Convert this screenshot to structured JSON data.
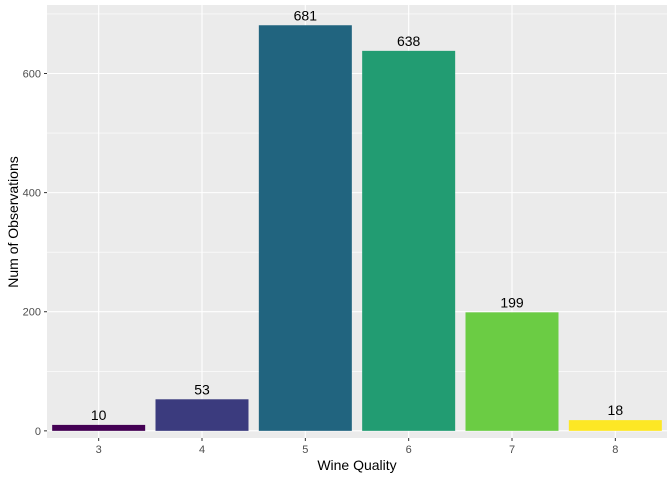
{
  "chart_data": {
    "type": "bar",
    "title": "",
    "xlabel": "Wine Quality",
    "ylabel": "Num of Observations",
    "categories": [
      "3",
      "4",
      "5",
      "6",
      "7",
      "8"
    ],
    "values": [
      10,
      53,
      681,
      638,
      199,
      18
    ],
    "data_labels": [
      "10",
      "53",
      "681",
      "638",
      "199",
      "18"
    ],
    "colors": [
      "#440154",
      "#3B3B7E",
      "#21647F",
      "#229C72",
      "#6BCC44",
      "#FDE725"
    ],
    "ylim": [
      -12,
      715
    ],
    "yticks": [
      0,
      200,
      400,
      600
    ],
    "grid": true,
    "legend": "none",
    "panel_background": "#EBEBEB",
    "grid_color": "#FFFFFF"
  }
}
